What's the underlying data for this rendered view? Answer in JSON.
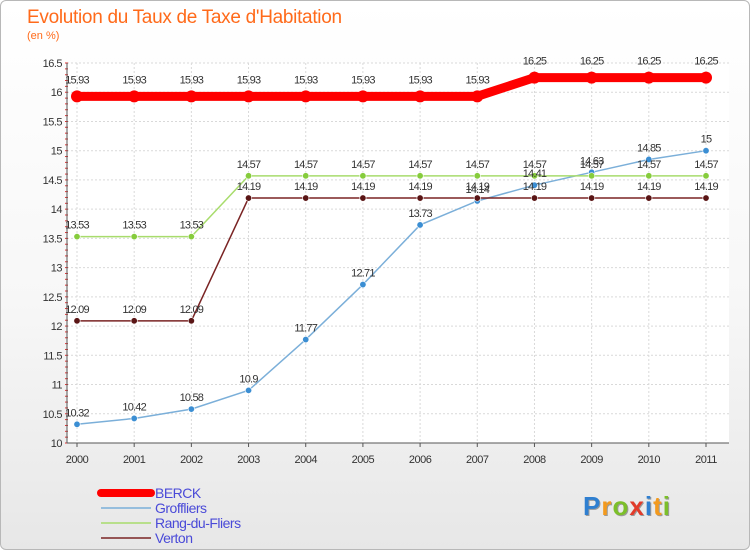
{
  "header": {
    "title": "Evolution du Taux de Taxe d'Habitation",
    "subtitle": "(en %)"
  },
  "logo": {
    "letters": [
      "P",
      "r",
      "o",
      "x",
      "i",
      "t",
      "i"
    ],
    "colors": [
      "#2f7fd0",
      "#f39a1e",
      "#7cbf2a",
      "#e23b2a",
      "#2f7fd0",
      "#f39a1e",
      "#7cbf2a"
    ]
  },
  "chart_data": {
    "type": "line",
    "title": "Evolution du Taux de Taxe d'Habitation",
    "subtitle": "(en %)",
    "xlabel": "",
    "ylabel": "",
    "x": [
      "2000",
      "2001",
      "2002",
      "2003",
      "2004",
      "2005",
      "2006",
      "2007",
      "2008",
      "2009",
      "2010",
      "2011"
    ],
    "ylim": [
      10,
      16.5
    ],
    "yticks": [
      "10",
      "10.5",
      "11",
      "11.5",
      "12",
      "12.5",
      "13",
      "13.5",
      "14",
      "14.5",
      "15",
      "15.5",
      "16",
      "16.5"
    ],
    "grid": true,
    "legend_position": "bottom-left",
    "series": [
      {
        "name": "BERCK",
        "color": "#ff0000",
        "emphasis": true,
        "values": [
          15.93,
          15.93,
          15.93,
          15.93,
          15.93,
          15.93,
          15.93,
          15.93,
          16.25,
          16.25,
          16.25,
          16.25
        ],
        "labels": [
          "15.93",
          "15.93",
          "15.93",
          "15.93",
          "15.93",
          "15.93",
          "15.93",
          "15.93",
          "16.25",
          "16.25",
          "16.25",
          "16.25"
        ]
      },
      {
        "name": "Groffliers",
        "color": "#7bafd9",
        "marker": "#3b8ed3",
        "values": [
          10.32,
          10.42,
          10.58,
          10.9,
          11.77,
          12.71,
          13.73,
          14.14,
          14.41,
          14.63,
          14.85,
          15
        ],
        "labels": [
          "10.32",
          "10.42",
          "10.58",
          "10.9",
          "11.77",
          "12.71",
          "13.73",
          "14.14",
          "14.41",
          "14.63",
          "14.85",
          "15"
        ]
      },
      {
        "name": "Rang-du-Fliers",
        "color": "#a8dc6c",
        "marker": "#86cc3c",
        "values": [
          13.53,
          13.53,
          13.53,
          14.57,
          14.57,
          14.57,
          14.57,
          14.57,
          14.57,
          14.57,
          14.57,
          14.57
        ],
        "labels": [
          "13.53",
          "13.53",
          "13.53",
          "14.57",
          "14.57",
          "14.57",
          "14.57",
          "14.57",
          "14.57",
          "14.57",
          "14.57",
          "14.57"
        ]
      },
      {
        "name": "Verton",
        "color": "#7a2424",
        "marker": "#5a1515",
        "values": [
          12.09,
          12.09,
          12.09,
          14.19,
          14.19,
          14.19,
          14.19,
          14.19,
          14.19,
          14.19,
          14.19,
          14.19
        ],
        "labels": [
          "12.09",
          "12.09",
          "12.09",
          "14.19",
          "14.19",
          "14.19",
          "14.19",
          "14.19",
          "14.19",
          "14.19",
          "14.19",
          "14.19"
        ]
      }
    ]
  }
}
